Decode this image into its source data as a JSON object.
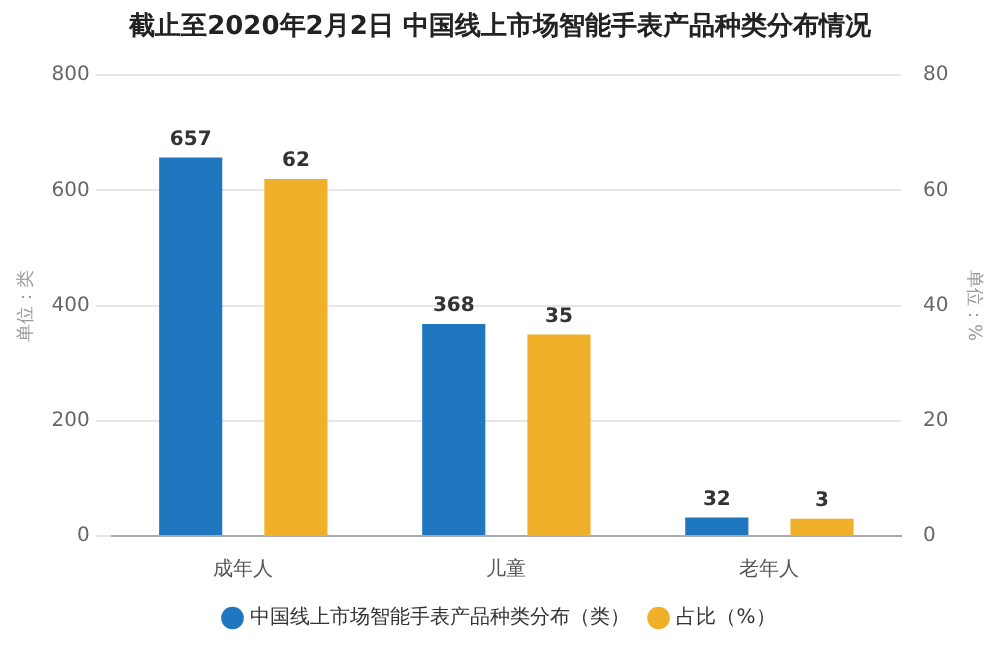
{
  "chart_data": {
    "type": "bar",
    "title": "截止至2020年2月2日 中国线上市场智能手表产品种类分布情况",
    "ylabel": "单位：类",
    "y2label": "单位：%",
    "categories": [
      "成年人",
      "儿童",
      "老年人"
    ],
    "series": [
      {
        "name": "中国线上市场智能手表产品种类分布（类）",
        "color": "#1f77c0",
        "values": [
          657,
          368,
          32
        ]
      },
      {
        "name": "占比（%）",
        "color": "#f0b02a",
        "values": [
          62,
          35,
          3
        ],
        "axis": "y2"
      }
    ],
    "ylim": [
      0,
      800
    ],
    "yticks": [
      0,
      200,
      400,
      600,
      800
    ],
    "y2lim": [
      0,
      80
    ],
    "y2ticks": [
      0,
      20,
      40,
      60,
      80
    ],
    "grid": "y",
    "legend": "bottom",
    "data_labels": true
  }
}
